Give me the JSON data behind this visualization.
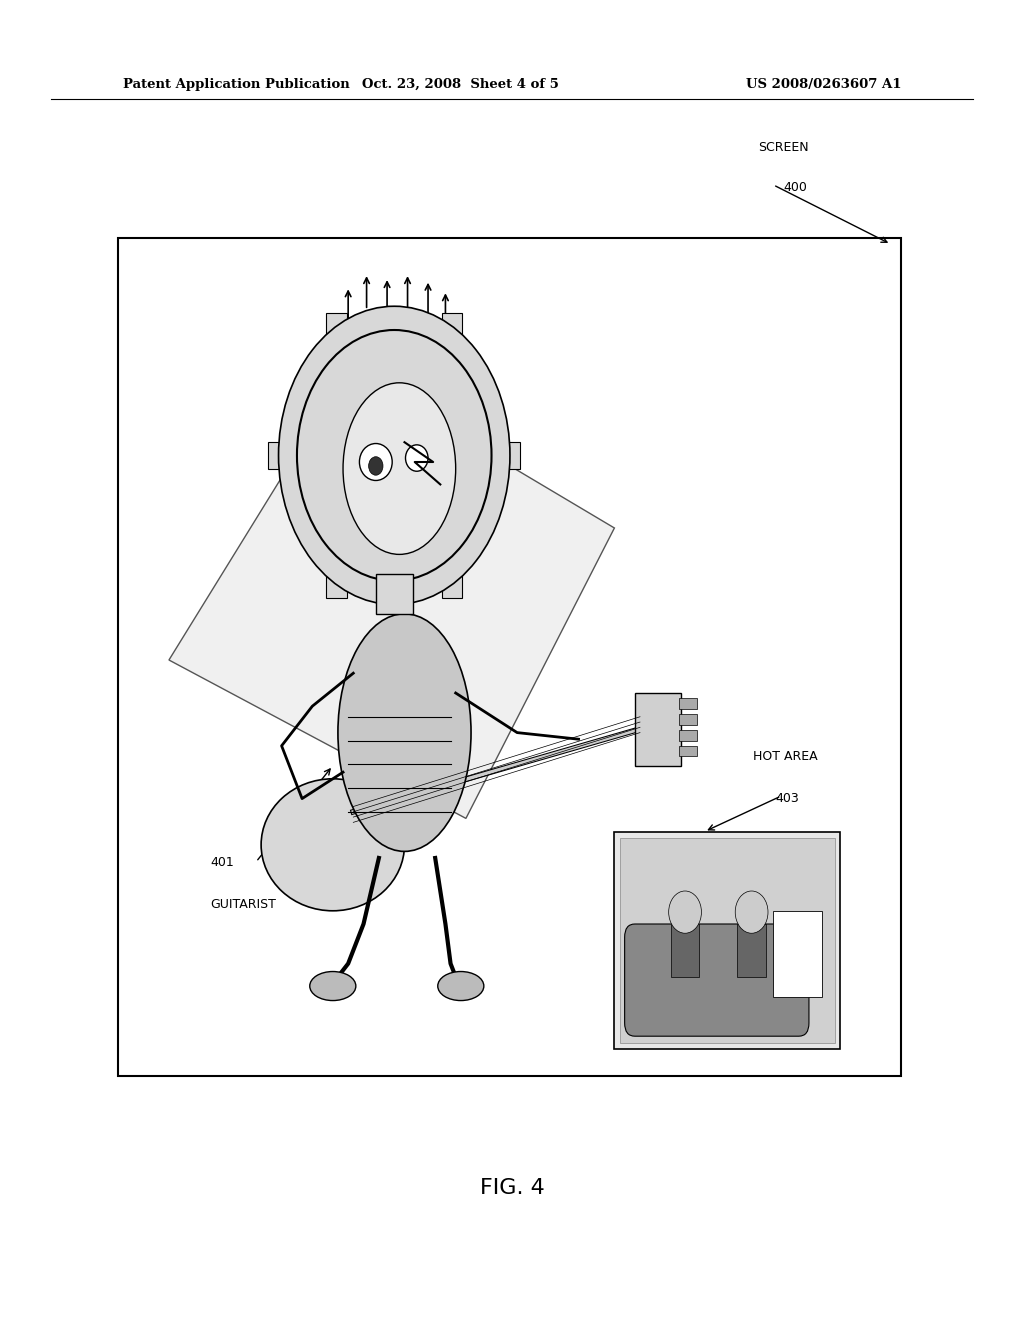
{
  "header_left": "Patent Application Publication",
  "header_mid": "Oct. 23, 2008  Sheet 4 of 5",
  "header_right": "US 2008/0263607 A1",
  "screen_label": "SCREEN",
  "screen_number": "400",
  "guitarist_label": "401",
  "guitarist_sublabel": "GUITARIST",
  "hot_area_label": "HOT AREA",
  "hot_area_number": "403",
  "figure_label": "FIG. 4",
  "bg_color": "#ffffff",
  "box_color": "#000000",
  "text_color": "#000000"
}
